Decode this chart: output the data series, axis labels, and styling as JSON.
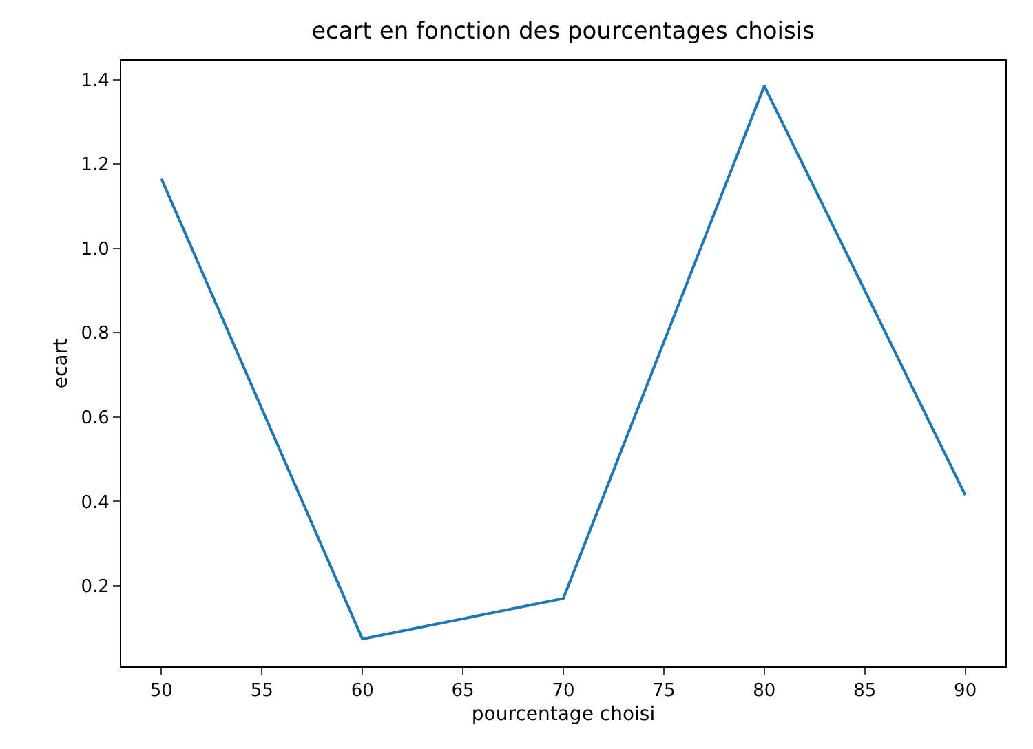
{
  "chart_data": {
    "type": "line",
    "title": "ecart en fonction des pourcentages choisis",
    "xlabel": "pourcentage choisi",
    "ylabel": "ecart",
    "x": [
      50,
      60,
      70,
      80,
      90
    ],
    "series": [
      {
        "color": "#1f77b4",
        "values": [
          1.165,
          0.074,
          0.17,
          1.385,
          0.415
        ]
      }
    ],
    "xlim": [
      48,
      92
    ],
    "xticks": [
      50,
      55,
      60,
      65,
      70,
      75,
      80,
      85,
      90
    ],
    "ylim": [
      0.009,
      1.445
    ],
    "yticks": [
      0.2,
      0.4,
      0.6,
      0.8,
      {
        "value": 1,
        "label": "1.0"
      },
      1.2,
      1.4
    ],
    "marker": "none",
    "line_style": "solid"
  }
}
